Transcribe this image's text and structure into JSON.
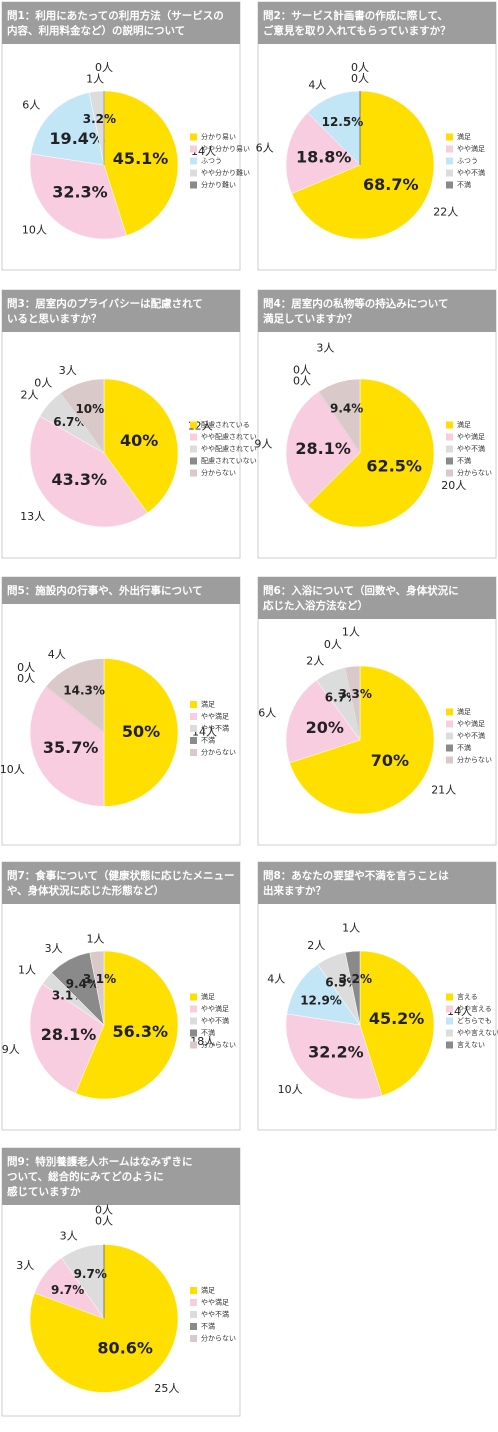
{
  "chart_data": [
    {
      "type": "pie",
      "title": [
        "問1：利用にあたっての利用方法（サービスの",
        "内容、利用料金など）の説明について"
      ],
      "categories": [
        "分かり易い",
        "やや分かり易い",
        "ふつう",
        "やや分かり難い",
        "分かり難い"
      ],
      "values": [
        45.1,
        32.3,
        19.4,
        3.2,
        0
      ],
      "value_labels": [
        "45.1%",
        "32.3%",
        "19.4%",
        "3.2%",
        null
      ],
      "count_labels": [
        "14人",
        "10人",
        "6人",
        "1人",
        "0人"
      ],
      "colors": [
        "#ffdf00",
        "#f9cde0",
        "#c3e6f7",
        "#dcdcdc",
        "#8a8a8a"
      ]
    },
    {
      "type": "pie",
      "title": [
        "問2：サービス計画書の作成に際して、",
        "ご意見を取り入れてもらっていますか？"
      ],
      "categories": [
        "満足",
        "やや満足",
        "ふつう",
        "やや不満",
        "不満"
      ],
      "values": [
        68.7,
        18.8,
        12.5,
        0,
        0
      ],
      "value_labels": [
        "68.7%",
        "18.8%",
        "12.5%",
        null,
        null
      ],
      "count_labels": [
        "22人",
        "6人",
        "4人",
        "0人",
        "0人"
      ],
      "colors": [
        "#ffdf00",
        "#f9cde0",
        "#c3e6f7",
        "#dcdcdc",
        "#8a8a8a"
      ]
    },
    {
      "type": "pie",
      "title": [
        "問3：居室内のプライバシーは配慮されて",
        "いると思いますか？"
      ],
      "categories": [
        "配慮されている",
        "やや配慮されている",
        "やや配慮されていない",
        "配慮されていない",
        "分からない"
      ],
      "values": [
        40,
        43.3,
        6.7,
        0,
        10
      ],
      "value_labels": [
        "40%",
        "43.3%",
        "6.7%",
        null,
        "10%"
      ],
      "count_labels": [
        "12人",
        "13人",
        "2人",
        "0人",
        "3人"
      ],
      "colors": [
        "#ffdf00",
        "#f9cde0",
        "#dcdcdc",
        "#8a8a8a",
        "#d9c9c9"
      ]
    },
    {
      "type": "pie",
      "title": [
        "問4：居室内の私物等の持込みについて",
        "満足していますか？"
      ],
      "categories": [
        "満足",
        "やや満足",
        "やや不満",
        "不満",
        "分からない"
      ],
      "values": [
        62.5,
        28.1,
        0,
        0,
        9.4
      ],
      "value_labels": [
        "62.5%",
        "28.1%",
        null,
        null,
        "9.4%"
      ],
      "count_labels": [
        "20人",
        "9人",
        "0人",
        "0人",
        "3人"
      ],
      "colors": [
        "#ffdf00",
        "#f9cde0",
        "#dcdcdc",
        "#8a8a8a",
        "#d9c9c9"
      ]
    },
    {
      "type": "pie",
      "title": [
        "問5：施設内の行事や、外出行事について"
      ],
      "categories": [
        "満足",
        "やや満足",
        "やや不満",
        "不満",
        "分からない"
      ],
      "values": [
        50,
        35.7,
        0,
        0,
        14.3
      ],
      "value_labels": [
        "50%",
        "35.7%",
        null,
        null,
        "14.3%"
      ],
      "count_labels": [
        "14人",
        "10人",
        "0人",
        "0人",
        "4人"
      ],
      "colors": [
        "#ffdf00",
        "#f9cde0",
        "#dcdcdc",
        "#8a8a8a",
        "#d9c9c9"
      ]
    },
    {
      "type": "pie",
      "title": [
        "問6：入浴について（回数や、身体状況に",
        "応じた入浴方法など）"
      ],
      "categories": [
        "満足",
        "やや満足",
        "やや不満",
        "不満",
        "分からない"
      ],
      "values": [
        70,
        20,
        6.7,
        0,
        3.3
      ],
      "value_labels": [
        "70%",
        "20%",
        "6.7%",
        null,
        "3.3%"
      ],
      "count_labels": [
        "21人",
        "6人",
        "2人",
        "0人",
        "1人"
      ],
      "colors": [
        "#ffdf00",
        "#f9cde0",
        "#dcdcdc",
        "#8a8a8a",
        "#d9c9c9"
      ]
    },
    {
      "type": "pie",
      "title": [
        "問7：食事について（健康状態に応じたメニュー",
        "や、身体状況に応じた形態など）"
      ],
      "categories": [
        "満足",
        "やや満足",
        "やや不満",
        "不満",
        "分からない"
      ],
      "values": [
        56.3,
        28.1,
        3.1,
        9.4,
        3.1
      ],
      "value_labels": [
        "56.3%",
        "28.1%",
        "3.1%",
        "9.4%",
        "3.1%"
      ],
      "count_labels": [
        "18人",
        "9人",
        "1人",
        "3人",
        "1人"
      ],
      "colors": [
        "#ffdf00",
        "#f9cde0",
        "#dcdcdc",
        "#8a8a8a",
        "#d9c9c9"
      ]
    },
    {
      "type": "pie",
      "title": [
        "問8：あなたの要望や不満を言うことは",
        "出来ますか？"
      ],
      "categories": [
        "言える",
        "やや言える",
        "どちらでも",
        "やや言えない",
        "言えない"
      ],
      "values": [
        45.2,
        32.2,
        12.9,
        6.5,
        3.2
      ],
      "value_labels": [
        "45.2%",
        "32.2%",
        "12.9%",
        "6.5%",
        "3.2%"
      ],
      "count_labels": [
        "14人",
        "10人",
        "4人",
        "2人",
        "1人"
      ],
      "colors": [
        "#ffdf00",
        "#f9cde0",
        "#c3e6f7",
        "#dcdcdc",
        "#8a8a8a"
      ]
    },
    {
      "type": "pie",
      "title": [
        "問9：特別養護老人ホームはなみずきに",
        "ついて、総合的にみてどのように",
        "感じていますか"
      ],
      "categories": [
        "満足",
        "やや満足",
        "やや不満",
        "不満",
        "分からない"
      ],
      "values": [
        80.6,
        9.7,
        9.7,
        0,
        0
      ],
      "value_labels": [
        "80.6%",
        "9.7%",
        "9.7%",
        null,
        null
      ],
      "count_labels": [
        "25人",
        "3人",
        "3人",
        "0人",
        "0人"
      ],
      "colors": [
        "#ffdf00",
        "#f9cde0",
        "#dcdcdc",
        "#8a8a8a",
        "#d9c9c9"
      ]
    }
  ]
}
